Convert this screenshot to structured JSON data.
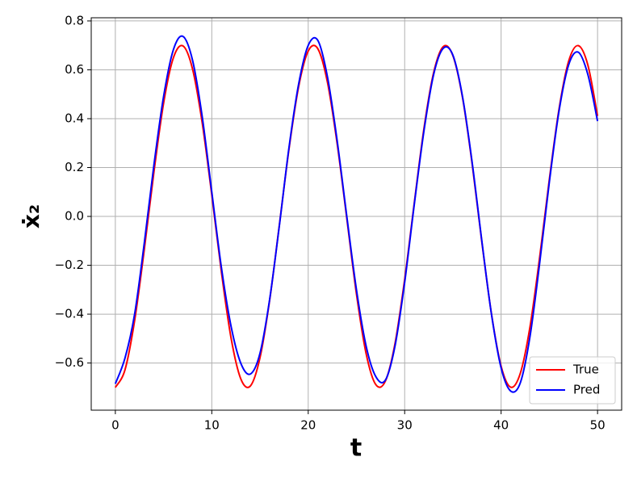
{
  "chart_data": {
    "type": "line",
    "xlabel": "t",
    "ylabel": "ẋ₂",
    "x": [
      0,
      1,
      2,
      3,
      4,
      5,
      6,
      7,
      8,
      9,
      10,
      11,
      12,
      13,
      14,
      15,
      16,
      17,
      18,
      19,
      20,
      21,
      22,
      23,
      24,
      25,
      26,
      27,
      28,
      29,
      30,
      31,
      32,
      33,
      34,
      35,
      36,
      37,
      38,
      39,
      40,
      41,
      42,
      43,
      44,
      45,
      46,
      47,
      48,
      49,
      50
    ],
    "series": [
      {
        "name": "True",
        "color": "#ff0000",
        "values": [
          -0.7,
          -0.628,
          -0.426,
          -0.136,
          0.182,
          0.463,
          0.647,
          0.698,
          0.604,
          0.385,
          0.088,
          -0.228,
          -0.498,
          -0.664,
          -0.694,
          -0.578,
          -0.343,
          -0.037,
          0.274,
          0.53,
          0.677,
          0.686,
          0.548,
          0.298,
          -0.008,
          -0.317,
          -0.561,
          -0.688,
          -0.674,
          -0.52,
          -0.258,
          0.056,
          0.36,
          0.588,
          0.695,
          0.658,
          0.486,
          0.214,
          -0.104,
          -0.399,
          -0.613,
          -0.699,
          -0.641,
          -0.451,
          -0.167,
          0.151,
          0.438,
          0.635,
          0.699,
          0.619,
          0.411
        ]
      },
      {
        "name": "Pred",
        "color": "#0000ff",
        "values": [
          -0.685,
          -0.58,
          -0.4,
          -0.11,
          0.21,
          0.49,
          0.68,
          0.737,
          0.64,
          0.41,
          0.1,
          -0.21,
          -0.45,
          -0.6,
          -0.645,
          -0.56,
          -0.34,
          -0.04,
          0.28,
          0.54,
          0.7,
          0.72,
          0.57,
          0.31,
          0.0,
          -0.3,
          -0.53,
          -0.655,
          -0.67,
          -0.53,
          -0.27,
          0.05,
          0.35,
          0.58,
          0.688,
          0.66,
          0.49,
          0.22,
          -0.1,
          -0.4,
          -0.62,
          -0.715,
          -0.68,
          -0.49,
          -0.19,
          0.14,
          0.43,
          0.62,
          0.672,
          0.58,
          0.39
        ]
      }
    ],
    "xlim": [
      -2.5,
      52.5
    ],
    "xticks": [
      0,
      10,
      20,
      30,
      40,
      50
    ],
    "ylim": [
      -0.793,
      0.813
    ],
    "yticks": [
      {
        "value": -0.6,
        "label": "−0.6"
      },
      {
        "value": -0.4,
        "label": "−0.4"
      },
      {
        "value": -0.2,
        "label": "−0.2"
      },
      {
        "value": 0,
        "label": "0.0"
      },
      0.2,
      0.4,
      0.6,
      0.8
    ],
    "grid": true,
    "legend": "lower right"
  }
}
